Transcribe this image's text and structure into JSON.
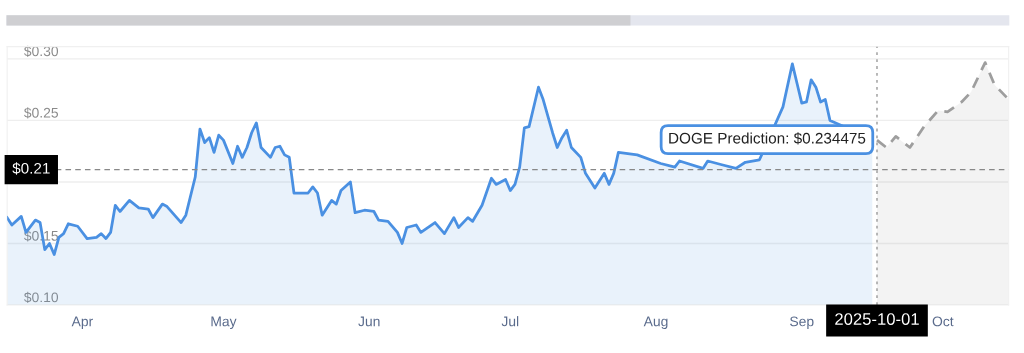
{
  "chart_data": {
    "type": "area",
    "xlim": [
      "2025-03-30",
      "2025-10-29"
    ],
    "xticks": [
      {
        "value": "2025-04-15",
        "label": "Apr"
      },
      {
        "value": "2025-05-15",
        "label": "May"
      },
      {
        "value": "2025-06-15",
        "label": "Jun"
      },
      {
        "value": "2025-07-15",
        "label": "Jul"
      },
      {
        "value": "2025-08-15",
        "label": "Aug"
      },
      {
        "value": "2025-09-15",
        "label": "Sep"
      },
      {
        "value": "2025-10-15",
        "label": "Oct"
      }
    ],
    "ylim": [
      0.1,
      0.31
    ],
    "yticks": [
      {
        "value": 0.1,
        "label": "$0.10"
      },
      {
        "value": 0.15,
        "label": "$0.15"
      },
      {
        "value": 0.2,
        "label": null
      },
      {
        "value": 0.25,
        "label": "$0.25"
      },
      {
        "value": 0.3,
        "label": "$0.30"
      }
    ],
    "grid": "y",
    "marker": "none",
    "series": [
      {
        "color": "#4a90e2",
        "line_style": "solid",
        "x": [
          "2025-03-30",
          "2025-03-31",
          "2025-04-02",
          "2025-04-03",
          "2025-04-05",
          "2025-04-06",
          "2025-04-07",
          "2025-04-08",
          "2025-04-09",
          "2025-04-10",
          "2025-04-11",
          "2025-04-12",
          "2025-04-14",
          "2025-04-16",
          "2025-04-18",
          "2025-04-19",
          "2025-04-20",
          "2025-04-21",
          "2025-04-22",
          "2025-04-23",
          "2025-04-25",
          "2025-04-27",
          "2025-04-29",
          "2025-04-30",
          "2025-05-02",
          "2025-05-03",
          "2025-05-06",
          "2025-05-07",
          "2025-05-09",
          "2025-05-10",
          "2025-05-11",
          "2025-05-12",
          "2025-05-13",
          "2025-05-14",
          "2025-05-15",
          "2025-05-17",
          "2025-05-18",
          "2025-05-19",
          "2025-05-20",
          "2025-05-21",
          "2025-05-22",
          "2025-05-23",
          "2025-05-25",
          "2025-05-26",
          "2025-05-27",
          "2025-05-28",
          "2025-05-29",
          "2025-05-30",
          "2025-06-02",
          "2025-06-03",
          "2025-06-04",
          "2025-06-05",
          "2025-06-07",
          "2025-06-08",
          "2025-06-09",
          "2025-06-11",
          "2025-06-12",
          "2025-06-14",
          "2025-06-16",
          "2025-06-17",
          "2025-06-19",
          "2025-06-21",
          "2025-06-22",
          "2025-06-23",
          "2025-06-25",
          "2025-06-26",
          "2025-06-29",
          "2025-07-01",
          "2025-07-03",
          "2025-07-04",
          "2025-07-06",
          "2025-07-07",
          "2025-07-09",
          "2025-07-11",
          "2025-07-12",
          "2025-07-14",
          "2025-07-15",
          "2025-07-16",
          "2025-07-17",
          "2025-07-18",
          "2025-07-19",
          "2025-07-21",
          "2025-07-22",
          "2025-07-24",
          "2025-07-25",
          "2025-07-26",
          "2025-07-27",
          "2025-07-28",
          "2025-07-30",
          "2025-07-31",
          "2025-08-02",
          "2025-08-04",
          "2025-08-05",
          "2025-08-06",
          "2025-08-07",
          "2025-08-11",
          "2025-08-16",
          "2025-08-19",
          "2025-08-20",
          "2025-08-25",
          "2025-08-26",
          "2025-08-29",
          "2025-09-01",
          "2025-09-03",
          "2025-09-06",
          "2025-09-11",
          "2025-09-13",
          "2025-09-14",
          "2025-09-15",
          "2025-09-16",
          "2025-09-17",
          "2025-09-18",
          "2025-09-19",
          "2025-09-20",
          "2025-09-21",
          "2025-09-30"
        ],
        "values": [
          0.171,
          0.165,
          0.172,
          0.159,
          0.169,
          0.167,
          0.145,
          0.15,
          0.141,
          0.155,
          0.158,
          0.166,
          0.164,
          0.154,
          0.155,
          0.158,
          0.154,
          0.159,
          0.181,
          0.176,
          0.185,
          0.179,
          0.178,
          0.171,
          0.182,
          0.18,
          0.167,
          0.173,
          0.204,
          0.243,
          0.232,
          0.236,
          0.224,
          0.238,
          0.234,
          0.215,
          0.229,
          0.22,
          0.228,
          0.24,
          0.248,
          0.228,
          0.22,
          0.228,
          0.229,
          0.222,
          0.22,
          0.191,
          0.191,
          0.196,
          0.191,
          0.173,
          0.185,
          0.182,
          0.193,
          0.2,
          0.175,
          0.177,
          0.176,
          0.169,
          0.168,
          0.159,
          0.15,
          0.163,
          0.165,
          0.159,
          0.167,
          0.158,
          0.171,
          0.163,
          0.171,
          0.168,
          0.181,
          0.203,
          0.198,
          0.202,
          0.193,
          0.198,
          0.212,
          0.244,
          0.245,
          0.277,
          0.267,
          0.24,
          0.228,
          0.236,
          0.242,
          0.228,
          0.22,
          0.207,
          0.195,
          0.207,
          0.198,
          0.207,
          0.224,
          0.222,
          0.215,
          0.212,
          0.217,
          0.211,
          0.217,
          0.214,
          0.211,
          0.216,
          0.218,
          0.261,
          0.296,
          0.28,
          0.264,
          0.265,
          0.283,
          0.277,
          0.265,
          0.267,
          0.25,
          0.235
        ]
      },
      {
        "color": "#9e9e9e",
        "line_style": "dashed",
        "x": [
          "2025-10-01",
          "2025-10-03",
          "2025-10-05",
          "2025-10-08",
          "2025-10-11",
          "2025-10-14",
          "2025-10-16",
          "2025-10-19",
          "2025-10-21",
          "2025-10-24",
          "2025-10-26",
          "2025-10-29"
        ],
        "values": [
          0.234,
          0.228,
          0.237,
          0.228,
          0.245,
          0.258,
          0.257,
          0.265,
          0.273,
          0.297,
          0.279,
          0.267
        ]
      }
    ],
    "ref_lines": [
      {
        "axis": "y",
        "value": 0.21,
        "label": "$0.21",
        "color": "#888888",
        "line_style": "dashed"
      },
      {
        "axis": "x",
        "value": "2025-10-01",
        "label": "2025-10-01",
        "color": "#999999",
        "line_style": "dotted"
      }
    ],
    "annotations": [
      {
        "text": "DOGE Prediction: $0.234475",
        "x": "2025-10-01",
        "y": 0.234475
      }
    ]
  }
}
